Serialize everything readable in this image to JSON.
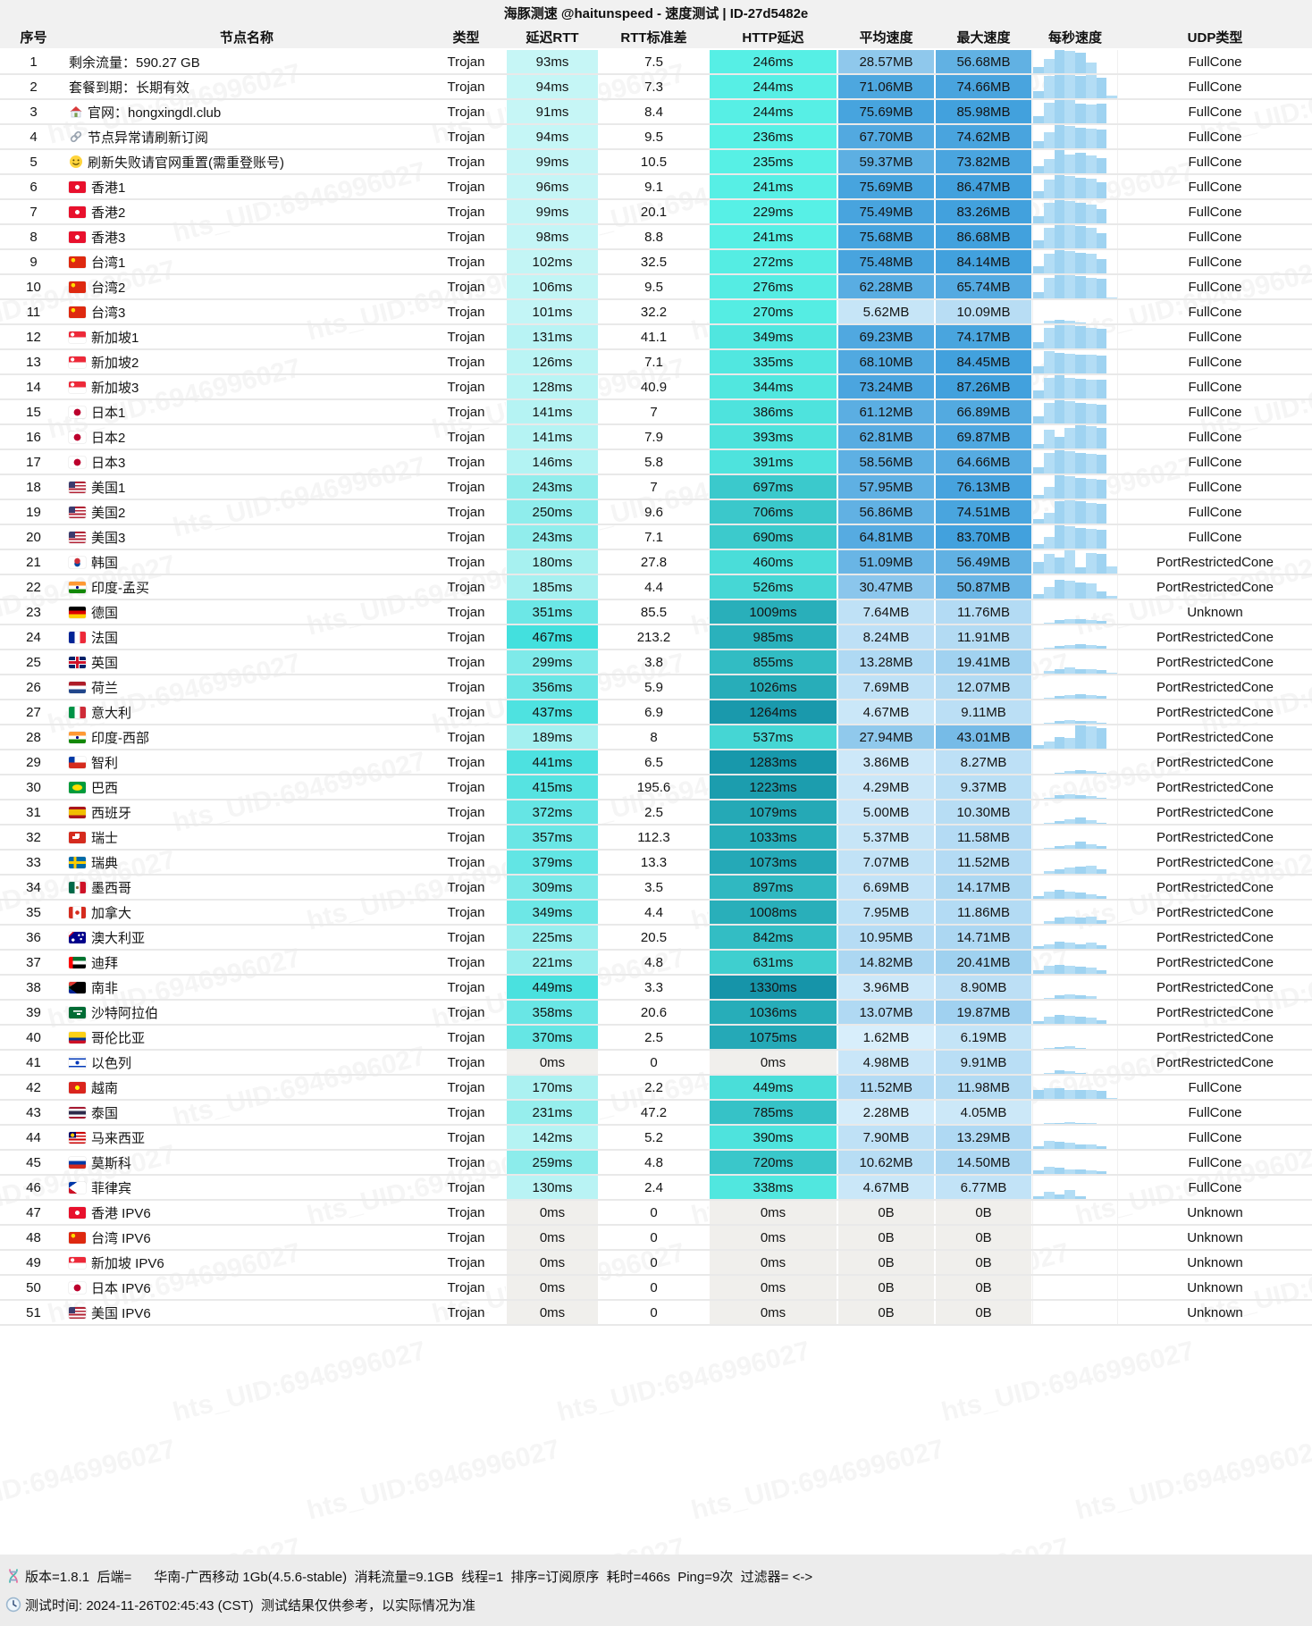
{
  "title": "海豚测速 @haitunspeed - 速度测试 | ID-27d5482e",
  "watermark": "hts_UID:6946996027",
  "columns": [
    "序号",
    "节点名称",
    "类型",
    "延迟RTT",
    "RTT标准差",
    "HTTP延迟",
    "平均速度",
    "最大速度",
    "每秒速度",
    "UDP类型"
  ],
  "palette": {
    "rtt_scale": [
      "#e6fbfc",
      "#38dedc"
    ],
    "http_scale": [
      "#58f1e6",
      "#1593a8"
    ],
    "speed_scale": [
      "#e8f6fe",
      "#42a1dd"
    ],
    "zero_bg": "#f0efec",
    "bar_color": "#9fd3f1"
  },
  "rows": [
    [
      1,
      "",
      "",
      "剩余流量：590.27 GB",
      "Trojan",
      "93ms",
      "7.5",
      "246ms",
      "28.57MB",
      "56.68MB",
      "FullCone",
      [
        0.25,
        0.6,
        1,
        0.95,
        0.9,
        0.45,
        0,
        0
      ]
    ],
    [
      2,
      "",
      "",
      "套餐到期：长期有效",
      "Trojan",
      "94ms",
      "7.3",
      "244ms",
      "71.06MB",
      "74.66MB",
      "FullCone",
      [
        0.3,
        0.95,
        1,
        1,
        0.95,
        1,
        0.9,
        0.1
      ]
    ],
    [
      3,
      "",
      "house",
      "官网：hongxingdl.club",
      "Trojan",
      "91ms",
      "8.4",
      "244ms",
      "75.69MB",
      "85.98MB",
      "FullCone",
      [
        0.3,
        0.9,
        1,
        1,
        0.85,
        0.8,
        0.85,
        0
      ]
    ],
    [
      4,
      "",
      "link",
      "节点异常请刷新订阅",
      "Trojan",
      "94ms",
      "9.5",
      "236ms",
      "67.70MB",
      "74.62MB",
      "FullCone",
      [
        0.3,
        0.7,
        1,
        0.95,
        0.9,
        0.85,
        0.8,
        0
      ]
    ],
    [
      5,
      "",
      "smiley",
      "刷新失败请官网重置(需重登账号)",
      "Trojan",
      "99ms",
      "10.5",
      "235ms",
      "59.37MB",
      "73.82MB",
      "FullCone",
      [
        0.3,
        0.6,
        1,
        0.8,
        0.9,
        0.75,
        0.65,
        0
      ]
    ],
    [
      6,
      "hk",
      "",
      "香港1",
      "Trojan",
      "96ms",
      "9.1",
      "241ms",
      "75.69MB",
      "86.47MB",
      "FullCone",
      [
        0.3,
        0.8,
        1,
        0.95,
        0.9,
        0.85,
        0.7,
        0
      ]
    ],
    [
      7,
      "hk",
      "",
      "香港2",
      "Trojan",
      "99ms",
      "20.1",
      "229ms",
      "75.49MB",
      "83.26MB",
      "FullCone",
      [
        0.3,
        0.9,
        1,
        0.95,
        0.9,
        0.8,
        0.6,
        0
      ]
    ],
    [
      8,
      "hk",
      "",
      "香港3",
      "Trojan",
      "98ms",
      "8.8",
      "241ms",
      "75.68MB",
      "86.68MB",
      "FullCone",
      [
        0.35,
        0.9,
        1,
        1,
        0.95,
        0.9,
        0.65,
        0
      ]
    ],
    [
      9,
      "cn",
      "",
      "台湾1",
      "Trojan",
      "102ms",
      "32.5",
      "272ms",
      "75.48MB",
      "84.14MB",
      "FullCone",
      [
        0.3,
        0.85,
        1,
        0.95,
        0.9,
        0.85,
        0.6,
        0
      ]
    ],
    [
      10,
      "cn",
      "",
      "台湾2",
      "Trojan",
      "106ms",
      "9.5",
      "276ms",
      "62.28MB",
      "65.74MB",
      "FullCone",
      [
        0.25,
        0.9,
        1,
        1,
        0.95,
        0.9,
        0.85,
        0.05
      ]
    ],
    [
      11,
      "cn",
      "",
      "台湾3",
      "Trojan",
      "101ms",
      "32.2",
      "270ms",
      "5.62MB",
      "10.09MB",
      "FullCone",
      [
        0,
        0.1,
        0.15,
        0.1,
        0.05,
        0,
        0,
        0
      ]
    ],
    [
      12,
      "sg",
      "",
      "新加坡1",
      "Trojan",
      "131ms",
      "41.1",
      "349ms",
      "69.23MB",
      "74.17MB",
      "FullCone",
      [
        0.25,
        0.9,
        1,
        1,
        0.95,
        0.9,
        0.85,
        0
      ]
    ],
    [
      13,
      "sg",
      "",
      "新加坡2",
      "Trojan",
      "126ms",
      "7.1",
      "335ms",
      "68.10MB",
      "84.45MB",
      "FullCone",
      [
        0.3,
        0.95,
        0.9,
        0.85,
        0.8,
        0.8,
        0.75,
        0
      ]
    ],
    [
      14,
      "sg",
      "",
      "新加坡3",
      "Trojan",
      "128ms",
      "40.9",
      "344ms",
      "73.24MB",
      "87.26MB",
      "FullCone",
      [
        0.35,
        0.9,
        1,
        0.9,
        0.85,
        0.8,
        0.8,
        0
      ]
    ],
    [
      15,
      "jp",
      "",
      "日本1",
      "Trojan",
      "141ms",
      "7",
      "386ms",
      "61.12MB",
      "66.89MB",
      "FullCone",
      [
        0.3,
        0.9,
        1,
        0.95,
        0.9,
        0.85,
        0.8,
        0
      ]
    ],
    [
      16,
      "jp",
      "",
      "日本2",
      "Trojan",
      "141ms",
      "7.9",
      "393ms",
      "62.81MB",
      "69.87MB",
      "FullCone",
      [
        0.2,
        0.8,
        0.5,
        0.9,
        1,
        0.95,
        0.9,
        0
      ]
    ],
    [
      17,
      "jp",
      "",
      "日本3",
      "Trojan",
      "146ms",
      "5.8",
      "391ms",
      "58.56MB",
      "64.66MB",
      "FullCone",
      [
        0.25,
        0.9,
        1,
        0.95,
        0.9,
        0.85,
        0.8,
        0
      ]
    ],
    [
      18,
      "us",
      "",
      "美国1",
      "Trojan",
      "243ms",
      "7",
      "697ms",
      "57.95MB",
      "76.13MB",
      "FullCone",
      [
        0.15,
        0.5,
        1,
        0.95,
        0.9,
        0.85,
        0.8,
        0
      ]
    ],
    [
      19,
      "us",
      "",
      "美国2",
      "Trojan",
      "250ms",
      "9.6",
      "706ms",
      "56.86MB",
      "74.51MB",
      "FullCone",
      [
        0.2,
        0.45,
        0.95,
        1,
        0.95,
        0.9,
        0.85,
        0
      ]
    ],
    [
      20,
      "us",
      "",
      "美国3",
      "Trojan",
      "243ms",
      "7.1",
      "690ms",
      "64.81MB",
      "83.70MB",
      "FullCone",
      [
        0.2,
        0.5,
        1,
        0.95,
        0.9,
        0.85,
        0.8,
        0
      ]
    ],
    [
      21,
      "kr",
      "",
      "韩国",
      "Trojan",
      "180ms",
      "27.8",
      "460ms",
      "51.09MB",
      "56.49MB",
      "PortRestrictedCone",
      [
        0.5,
        0.85,
        0.7,
        1,
        0.25,
        0.9,
        0.85,
        0.3
      ]
    ],
    [
      22,
      "in",
      "",
      "印度-孟买",
      "Trojan",
      "185ms",
      "4.4",
      "526ms",
      "30.47MB",
      "50.87MB",
      "PortRestrictedCone",
      [
        0.2,
        0.5,
        0.8,
        0.75,
        0.7,
        0.65,
        0.3,
        0.1
      ]
    ],
    [
      23,
      "de",
      "",
      "德国",
      "Trojan",
      "351ms",
      "85.5",
      "1009ms",
      "7.64MB",
      "11.76MB",
      "Unknown",
      [
        0,
        0.05,
        0.15,
        0.2,
        0.18,
        0.15,
        0.1,
        0
      ]
    ],
    [
      24,
      "fr",
      "",
      "法国",
      "Trojan",
      "467ms",
      "213.2",
      "985ms",
      "8.24MB",
      "11.91MB",
      "PortRestrictedCone",
      [
        0,
        0.05,
        0.12,
        0.15,
        0.2,
        0.15,
        0.1,
        0
      ]
    ],
    [
      25,
      "gb",
      "",
      "英国",
      "Trojan",
      "299ms",
      "3.8",
      "855ms",
      "13.28MB",
      "19.41MB",
      "PortRestrictedCone",
      [
        0,
        0.1,
        0.2,
        0.25,
        0.2,
        0.2,
        0.15,
        0.05
      ]
    ],
    [
      26,
      "nl",
      "",
      "荷兰",
      "Trojan",
      "356ms",
      "5.9",
      "1026ms",
      "7.69MB",
      "12.07MB",
      "PortRestrictedCone",
      [
        0,
        0.05,
        0.1,
        0.15,
        0.2,
        0.15,
        0.1,
        0
      ]
    ],
    [
      27,
      "it",
      "",
      "意大利",
      "Trojan",
      "437ms",
      "6.9",
      "1264ms",
      "4.67MB",
      "9.11MB",
      "PortRestrictedCone",
      [
        0,
        0.05,
        0.1,
        0.15,
        0.12,
        0.1,
        0.05,
        0
      ]
    ],
    [
      28,
      "in",
      "",
      "印度-西部",
      "Trojan",
      "189ms",
      "8",
      "537ms",
      "27.94MB",
      "43.01MB",
      "PortRestrictedCone",
      [
        0.15,
        0.3,
        0.5,
        0.45,
        1,
        0.95,
        0.9,
        0
      ]
    ],
    [
      29,
      "cl",
      "",
      "智利",
      "Trojan",
      "441ms",
      "6.5",
      "1283ms",
      "3.86MB",
      "8.27MB",
      "PortRestrictedCone",
      [
        0,
        0,
        0.05,
        0.1,
        0.15,
        0.1,
        0.05,
        0
      ]
    ],
    [
      30,
      "br",
      "",
      "巴西",
      "Trojan",
      "415ms",
      "195.6",
      "1223ms",
      "4.29MB",
      "9.37MB",
      "PortRestrictedCone",
      [
        0,
        0.05,
        0.15,
        0.2,
        0.15,
        0.1,
        0.05,
        0
      ]
    ],
    [
      31,
      "es",
      "",
      "西班牙",
      "Trojan",
      "372ms",
      "2.5",
      "1079ms",
      "5.00MB",
      "10.30MB",
      "PortRestrictedCone",
      [
        0,
        0.05,
        0.1,
        0.2,
        0.25,
        0.15,
        0.05,
        0
      ]
    ],
    [
      32,
      "ch",
      "",
      "瑞士",
      "Trojan",
      "357ms",
      "112.3",
      "1033ms",
      "5.37MB",
      "11.58MB",
      "PortRestrictedCone",
      [
        0,
        0.05,
        0.1,
        0.15,
        0.3,
        0.2,
        0.1,
        0
      ]
    ],
    [
      33,
      "se",
      "",
      "瑞典",
      "Trojan",
      "379ms",
      "13.3",
      "1073ms",
      "7.07MB",
      "11.52MB",
      "PortRestrictedCone",
      [
        0,
        0.1,
        0.2,
        0.25,
        0.3,
        0.35,
        0.2,
        0
      ]
    ],
    [
      34,
      "mx",
      "",
      "墨西哥",
      "Trojan",
      "309ms",
      "3.5",
      "897ms",
      "6.69MB",
      "14.17MB",
      "PortRestrictedCone",
      [
        0.1,
        0.3,
        0.4,
        0.3,
        0.25,
        0.2,
        0.1,
        0
      ]
    ],
    [
      35,
      "ca",
      "",
      "加拿大",
      "Trojan",
      "349ms",
      "4.4",
      "1008ms",
      "7.95MB",
      "11.86MB",
      "PortRestrictedCone",
      [
        0,
        0.1,
        0.25,
        0.3,
        0.25,
        0.3,
        0.15,
        0
      ]
    ],
    [
      36,
      "au",
      "",
      "澳大利亚",
      "Trojan",
      "225ms",
      "20.5",
      "842ms",
      "10.95MB",
      "14.71MB",
      "PortRestrictedCone",
      [
        0.1,
        0.2,
        0.3,
        0.25,
        0.2,
        0.25,
        0.15,
        0
      ]
    ],
    [
      37,
      "ae",
      "",
      "迪拜",
      "Trojan",
      "221ms",
      "4.8",
      "631ms",
      "14.82MB",
      "20.41MB",
      "PortRestrictedCone",
      [
        0.15,
        0.35,
        0.4,
        0.35,
        0.3,
        0.25,
        0.15,
        0
      ]
    ],
    [
      38,
      "za",
      "",
      "南非",
      "Trojan",
      "449ms",
      "3.3",
      "1330ms",
      "3.96MB",
      "8.90MB",
      "PortRestrictedCone",
      [
        0,
        0.05,
        0.15,
        0.2,
        0.15,
        0.1,
        0,
        0
      ]
    ],
    [
      39,
      "sa",
      "",
      "沙特阿拉伯",
      "Trojan",
      "358ms",
      "20.6",
      "1036ms",
      "13.07MB",
      "19.87MB",
      "PortRestrictedCone",
      [
        0.1,
        0.3,
        0.4,
        0.35,
        0.3,
        0.25,
        0.15,
        0
      ]
    ],
    [
      40,
      "co",
      "",
      "哥伦比亚",
      "Trojan",
      "370ms",
      "2.5",
      "1075ms",
      "1.62MB",
      "6.19MB",
      "PortRestrictedCone",
      [
        0,
        0.02,
        0.08,
        0.1,
        0.05,
        0,
        0,
        0
      ]
    ],
    [
      41,
      "il",
      "",
      "以色列",
      "Trojan",
      "0ms",
      "0",
      "0ms",
      "4.98MB",
      "9.91MB",
      "PortRestrictedCone",
      [
        0,
        0.05,
        0.15,
        0.1,
        0.05,
        0,
        0,
        0
      ]
    ],
    [
      42,
      "vn",
      "",
      "越南",
      "Trojan",
      "170ms",
      "2.2",
      "449ms",
      "11.52MB",
      "11.98MB",
      "FullCone",
      [
        0.4,
        0.45,
        0.45,
        0.4,
        0.4,
        0.4,
        0.35,
        0.05
      ]
    ],
    [
      43,
      "th",
      "",
      "泰国",
      "Trojan",
      "231ms",
      "47.2",
      "785ms",
      "2.28MB",
      "4.05MB",
      "FullCone",
      [
        0,
        0.02,
        0.05,
        0.08,
        0.05,
        0.02,
        0,
        0
      ]
    ],
    [
      44,
      "my",
      "",
      "马来西亚",
      "Trojan",
      "142ms",
      "5.2",
      "390ms",
      "7.90MB",
      "13.29MB",
      "FullCone",
      [
        0.1,
        0.35,
        0.3,
        0.25,
        0.2,
        0.2,
        0.1,
        0
      ]
    ],
    [
      45,
      "ru",
      "",
      "莫斯科",
      "Trojan",
      "259ms",
      "4.8",
      "720ms",
      "10.62MB",
      "14.50MB",
      "FullCone",
      [
        0.15,
        0.3,
        0.25,
        0.2,
        0.2,
        0.15,
        0.1,
        0
      ]
    ],
    [
      46,
      "ph",
      "",
      "菲律宾",
      "Trojan",
      "130ms",
      "2.4",
      "338ms",
      "4.67MB",
      "6.77MB",
      "FullCone",
      [
        0.1,
        0.3,
        0.2,
        0.4,
        0.1,
        0,
        0,
        0
      ]
    ],
    [
      47,
      "hk",
      "",
      "香港 IPV6",
      "Trojan",
      "0ms",
      "0",
      "0ms",
      "0B",
      "0B",
      "Unknown",
      [
        0,
        0,
        0,
        0,
        0,
        0,
        0,
        0
      ]
    ],
    [
      48,
      "cn",
      "",
      "台湾 IPV6",
      "Trojan",
      "0ms",
      "0",
      "0ms",
      "0B",
      "0B",
      "Unknown",
      [
        0,
        0,
        0,
        0,
        0,
        0,
        0,
        0
      ]
    ],
    [
      49,
      "sg",
      "",
      "新加坡 IPV6",
      "Trojan",
      "0ms",
      "0",
      "0ms",
      "0B",
      "0B",
      "Unknown",
      [
        0,
        0,
        0,
        0,
        0,
        0,
        0,
        0
      ]
    ],
    [
      50,
      "jp",
      "",
      "日本 IPV6",
      "Trojan",
      "0ms",
      "0",
      "0ms",
      "0B",
      "0B",
      "Unknown",
      [
        0,
        0,
        0,
        0,
        0,
        0,
        0,
        0
      ]
    ],
    [
      51,
      "us",
      "",
      "美国 IPV6",
      "Trojan",
      "0ms",
      "0",
      "0ms",
      "0B",
      "0B",
      "Unknown",
      [
        0,
        0,
        0,
        0,
        0,
        0,
        0,
        0
      ]
    ]
  ],
  "footer": {
    "line1": "版本=1.8.1  后端=      华南-广西移动 1Gb(4.5.6-stable)  消耗流量=9.1GB  线程=1  排序=订阅原序  耗时=466s  Ping=9次  过滤器= <->",
    "line2": "测试时间: 2024-11-26T02:45:43 (CST)  测试结果仅供参考，以实际情况为准"
  }
}
